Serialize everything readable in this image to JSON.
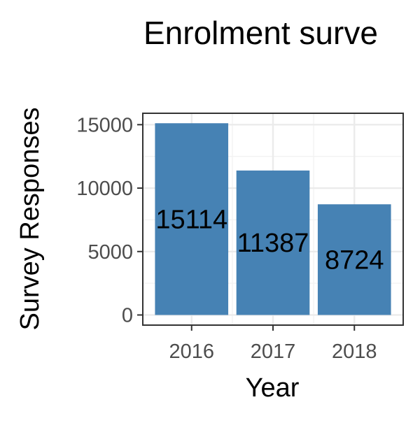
{
  "chart_data": {
    "type": "bar",
    "title": "Enrolment surve",
    "xlabel": "Year",
    "ylabel": "Survey Responses",
    "categories": [
      "2016",
      "2017",
      "2018"
    ],
    "values": [
      15114,
      11387,
      8724
    ],
    "data_labels": [
      "15114",
      "11387",
      "8724"
    ],
    "ylim": [
      -800,
      15900
    ],
    "yticks": [
      0,
      5000,
      10000,
      15000
    ],
    "ytick_labels": [
      "0",
      "5000",
      "10000",
      "15000"
    ],
    "grid": true,
    "legend": "none",
    "bar_color": "#4682b4"
  }
}
